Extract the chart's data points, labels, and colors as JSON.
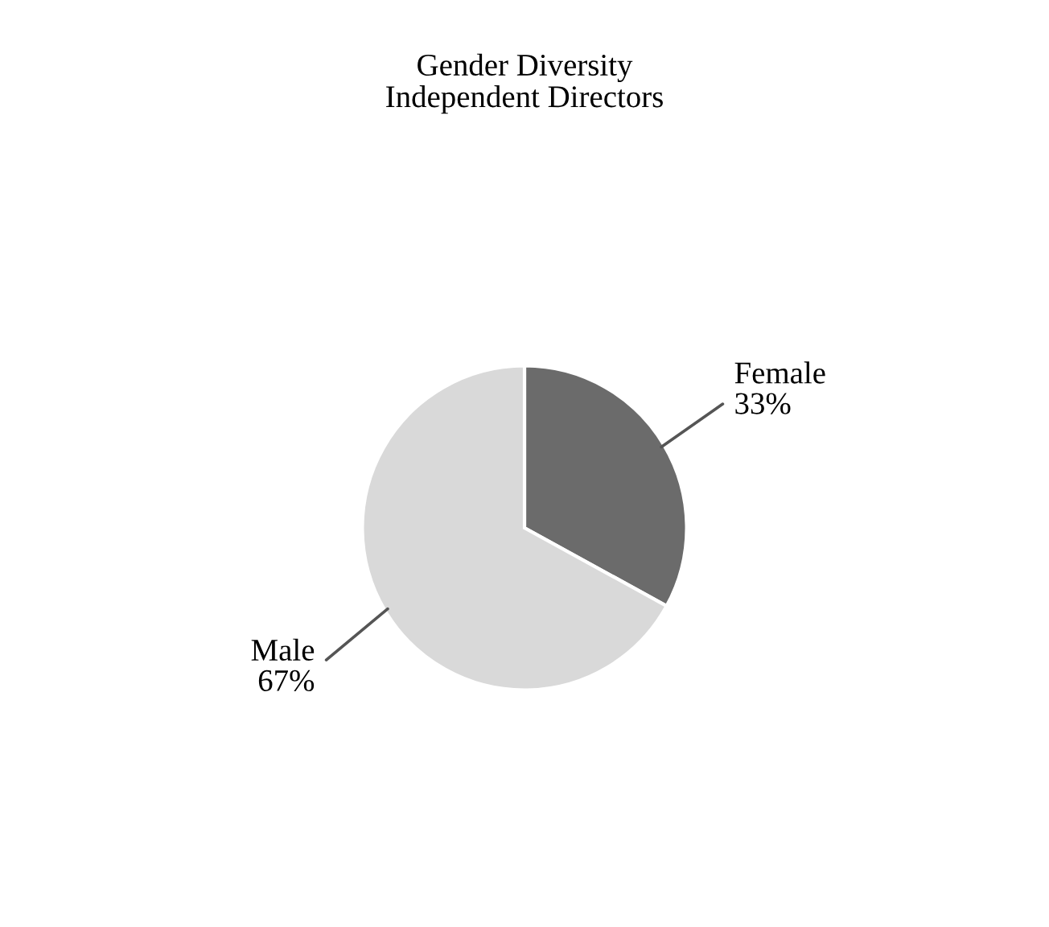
{
  "chart_data": {
    "type": "pie",
    "title": "Gender Diversity\nIndependent Directors",
    "categories": [
      "Female",
      "Male"
    ],
    "values": [
      33,
      67
    ],
    "value_labels": [
      "33%",
      "67%"
    ],
    "colors": [
      "#6b6b6b",
      "#d9d9d9"
    ],
    "legend": false
  }
}
